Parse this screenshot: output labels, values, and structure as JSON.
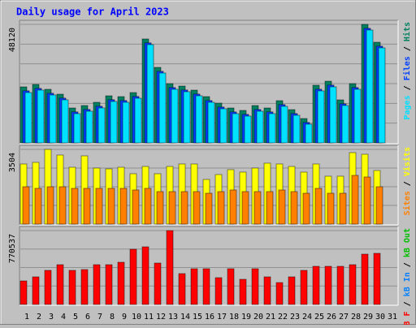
{
  "title": "Daily usage for April 2023",
  "separator": "/",
  "chart_data": [
    {
      "type": "bar",
      "ylim": [
        0,
        48120
      ],
      "yticks": [
        48120
      ],
      "series": [
        {
          "name": "Pages",
          "color": "#00e0ff",
          "values": [
            20440,
            21430,
            19450,
            17480,
            11870,
            12860,
            14180,
            16820,
            16490,
            18140,
            39890,
            28350,
            21760,
            20770,
            19120,
            16490,
            13850,
            11870,
            10880,
            12860,
            11870,
            14840,
            11210,
            7590,
            21100,
            22750,
            15170,
            21760,
            45820,
            38570,
            null
          ]
        },
        {
          "name": "Files",
          "color": "#0040ff",
          "values": [
            21140,
            22130,
            20150,
            18180,
            12570,
            13560,
            14880,
            17520,
            17190,
            18840,
            40590,
            29050,
            22460,
            21470,
            19820,
            17190,
            14550,
            12570,
            11580,
            13560,
            12570,
            15540,
            11910,
            8290,
            21800,
            23450,
            15870,
            22460,
            46520,
            39270,
            null
          ]
        },
        {
          "name": "Hits",
          "color": "#008060",
          "values": [
            22742,
            23731,
            21754,
            19776,
            14173,
            15162,
            16480,
            19117,
            18787,
            20435,
            42189,
            30653,
            24061,
            23072,
            21424,
            18787,
            16150,
            14173,
            13184,
            15162,
            14173,
            17139,
            13514,
            9888,
            23402,
            25050,
            17469,
            24061,
            48120,
            40870,
            null
          ]
        }
      ]
    },
    {
      "type": "bar",
      "ylim": [
        0,
        3504
      ],
      "yticks": [
        3504
      ],
      "series": [
        {
          "name": "Sites",
          "color": "#ff8000",
          "values": [
            1752,
            1676,
            1752,
            1752,
            1676,
            1676,
            1676,
            1676,
            1676,
            1600,
            1676,
            1524,
            1524,
            1524,
            1524,
            1447,
            1524,
            1600,
            1524,
            1524,
            1524,
            1600,
            1524,
            1447,
            1676,
            1447,
            1447,
            2285,
            2209,
            1752,
            null
          ]
        },
        {
          "name": "Visits",
          "color": "#ffff00",
          "values": [
            2819,
            2895,
            3504,
            3238,
            2666,
            3200,
            2628,
            2590,
            2666,
            2362,
            2704,
            2362,
            2704,
            2819,
            2819,
            2095,
            2323,
            2552,
            2438,
            2628,
            2857,
            2819,
            2704,
            2438,
            2819,
            2247,
            2247,
            3352,
            3276,
            2514,
            null
          ]
        }
      ]
    },
    {
      "type": "bar",
      "ylim": [
        0,
        770537
      ],
      "yticks": [
        770537
      ],
      "categories": [
        "1",
        "2",
        "3",
        "4",
        "5",
        "6",
        "7",
        "8",
        "9",
        "10",
        "11",
        "12",
        "13",
        "14",
        "15",
        "16",
        "17",
        "18",
        "19",
        "20",
        "21",
        "22",
        "23",
        "24",
        "25",
        "26",
        "27",
        "28",
        "29",
        "30",
        "31"
      ],
      "category_colors": [
        "#008040",
        "#008040",
        "#000000",
        "#000000",
        "#000000",
        "#000000",
        "#000000",
        "#008040",
        "#008040",
        "#000000",
        "#000000",
        "#000000",
        "#000000",
        "#000000",
        "#008040",
        "#008040",
        "#000000",
        "#000000",
        "#000000",
        "#000000",
        "#000000",
        "#008040",
        "#008040",
        "#000000",
        "#000000",
        "#000000",
        "#000000",
        "#000000",
        "#008040",
        "#00b000",
        "#000000"
      ],
      "series": [
        {
          "name": "kB F",
          "color": "#ff0000",
          "values": [
            245543,
            287878,
            355614,
            414883,
            355614,
            364081,
            414883,
            414883,
            440284,
            575756,
            601157,
            431817,
            770537,
            321746,
            372548,
            372548,
            279411,
            372548,
            262477,
            372548,
            287878,
            228609,
            287878,
            355614,
            397949,
            397949,
            397949,
            414883,
            524954,
            533421,
            null
          ]
        },
        {
          "name": "kB In",
          "color": "#0080ff",
          "values": [
            null,
            null,
            null,
            null,
            null,
            null,
            null,
            null,
            null,
            null,
            null,
            null,
            null,
            null,
            null,
            null,
            null,
            null,
            null,
            null,
            null,
            null,
            null,
            null,
            null,
            null,
            null,
            null,
            null,
            null,
            null
          ]
        },
        {
          "name": "kB Out",
          "color": "#00c000",
          "values": [
            null,
            null,
            null,
            null,
            null,
            null,
            null,
            null,
            null,
            null,
            null,
            null,
            null,
            null,
            null,
            null,
            null,
            null,
            null,
            null,
            null,
            null,
            null,
            null,
            null,
            null,
            null,
            null,
            null,
            null,
            null
          ]
        }
      ]
    }
  ]
}
